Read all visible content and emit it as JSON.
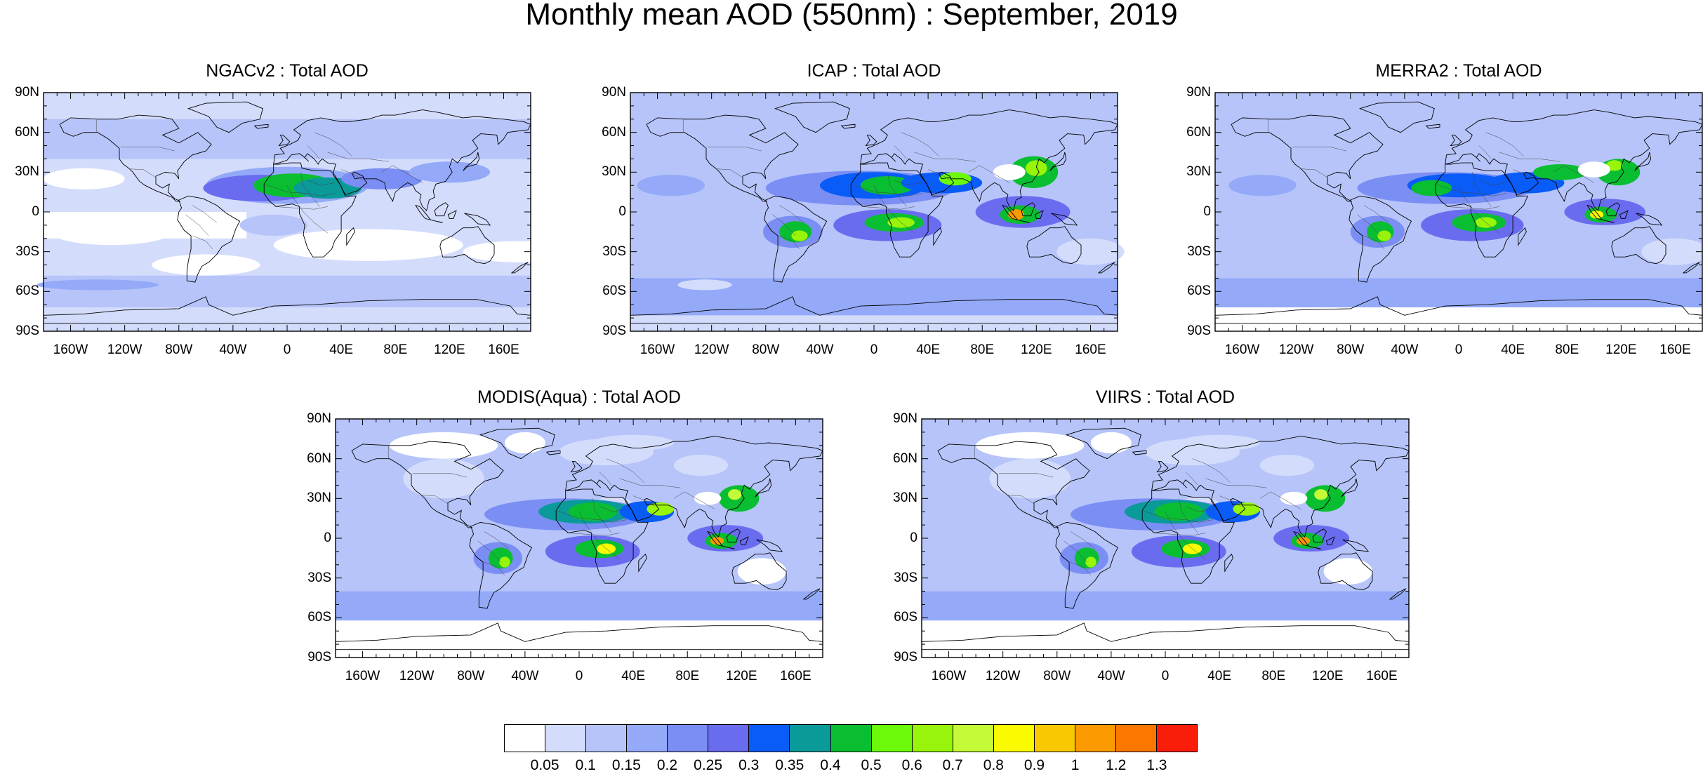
{
  "title": "Monthly mean AOD (550nm) : September, 2019",
  "lat_labels": [
    "90N",
    "60N",
    "30N",
    "0",
    "30S",
    "60S",
    "90S"
  ],
  "lon_labels": [
    "160W",
    "120W",
    "80W",
    "40W",
    "0",
    "40E",
    "80E",
    "120E",
    "160E"
  ],
  "lat_values": [
    90,
    60,
    30,
    0,
    -30,
    -60,
    -90
  ],
  "lon_values": [
    -160,
    -120,
    -80,
    -40,
    0,
    40,
    80,
    120,
    160
  ],
  "lon_range": [
    -180,
    180
  ],
  "lat_range": [
    -90,
    90
  ],
  "panels": [
    {
      "id": "ngacv2",
      "title": "NGACv2 : Total AOD",
      "style": "model_low"
    },
    {
      "id": "icap",
      "title": "ICAP : Total AOD",
      "style": "model_high"
    },
    {
      "id": "merra2",
      "title": "MERRA2 : Total AOD",
      "style": "model_mid"
    },
    {
      "id": "modis",
      "title": "MODIS(Aqua) : Total AOD",
      "style": "obs"
    },
    {
      "id": "viirs",
      "title": "VIIRS : Total AOD",
      "style": "obs"
    }
  ],
  "colorbar": {
    "colors": [
      "#ffffff",
      "#d4dcfc",
      "#b6c4fa",
      "#94aaf8",
      "#7b8ef4",
      "#6a6cf0",
      "#0a5cf8",
      "#0a9a9a",
      "#0abe32",
      "#6cfa0a",
      "#98f40a",
      "#c4fa38",
      "#fafa00",
      "#fac800",
      "#fa9a00",
      "#fa7800",
      "#fa1e0a"
    ],
    "labels": [
      "0.05",
      "0.1",
      "0.15",
      "0.2",
      "0.25",
      "0.3",
      "0.35",
      "0.4",
      "0.5",
      "0.6",
      "0.7",
      "0.8",
      "0.9",
      "1",
      "1.2",
      "1.3"
    ]
  }
}
